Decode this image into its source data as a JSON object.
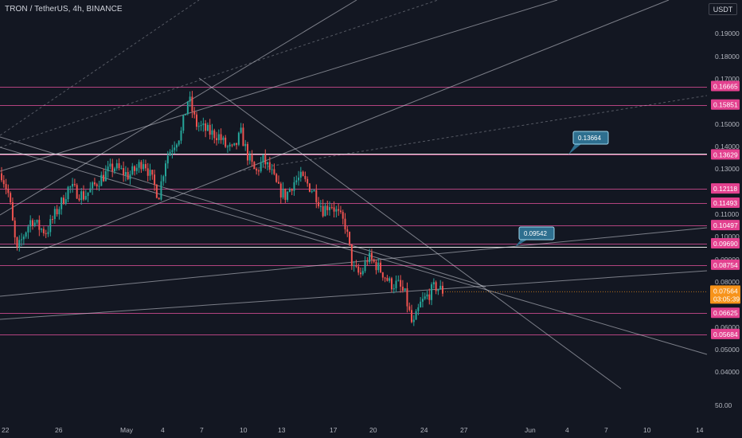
{
  "header": {
    "symbol_title": "TRON / TetherUS, 4h, BINANCE",
    "currency_label": "USDT"
  },
  "price_axis": {
    "ticks": [
      "0.19000",
      "0.18000",
      "0.17000",
      "0.15000",
      "0.14000",
      "0.13000",
      "0.11000",
      "0.10000",
      "0.09000",
      "0.08000",
      "0.06000",
      "0.05000",
      "0.04000",
      "50.00"
    ]
  },
  "time_axis": {
    "labels": [
      "22",
      "26",
      "May",
      "4",
      "7",
      "10",
      "13",
      "17",
      "20",
      "24",
      "27",
      "Jun",
      "4",
      "7",
      "10",
      "14"
    ]
  },
  "level_tags": [
    "0.16665",
    "0.15851",
    "0.13629",
    "0.12118",
    "0.11493",
    "0.10497",
    "0.09690",
    "0.08754",
    "0.06625",
    "0.05684"
  ],
  "current_price": {
    "price": "0.07564",
    "countdown": "03:05:39"
  },
  "callouts": [
    "0.13664",
    "0.09542"
  ],
  "colors": {
    "background": "#131722",
    "level_line": "#b2437f",
    "level_tag": "#e3418f",
    "up_candle": "#26a69a",
    "down_candle": "#ef5350",
    "price_tag": "#f7931a",
    "callout": "#2e6f8f",
    "trendline": "#d1d4dc"
  },
  "chart_data": {
    "type": "candlestick",
    "title": "TRON / TetherUS, 4h, BINANCE",
    "close_path": [
      0.128,
      0.118,
      0.093,
      0.101,
      0.108,
      0.104,
      0.102,
      0.109,
      0.115,
      0.122,
      0.12,
      0.118,
      0.121,
      0.125,
      0.128,
      0.131,
      0.129,
      0.127,
      0.13,
      0.134,
      0.126,
      0.118,
      0.135,
      0.141,
      0.146,
      0.162,
      0.15,
      0.148,
      0.146,
      0.145,
      0.14,
      0.138,
      0.146,
      0.135,
      0.128,
      0.134,
      0.129,
      0.121,
      0.118,
      0.124,
      0.126,
      0.123,
      0.119,
      0.112,
      0.115,
      0.11,
      0.105,
      0.086,
      0.083,
      0.091,
      0.088,
      0.084,
      0.079,
      0.079,
      0.074,
      0.06,
      0.07,
      0.074,
      0.078,
      0.076
    ],
    "candle_count": 200,
    "price_levels": [
      0.16665,
      0.15851,
      0.13629,
      0.12118,
      0.11493,
      0.10497,
      0.0969,
      0.08754,
      0.06625,
      0.05684
    ],
    "current_price": 0.07564,
    "annotations": [
      0.13664,
      0.09542
    ]
  }
}
